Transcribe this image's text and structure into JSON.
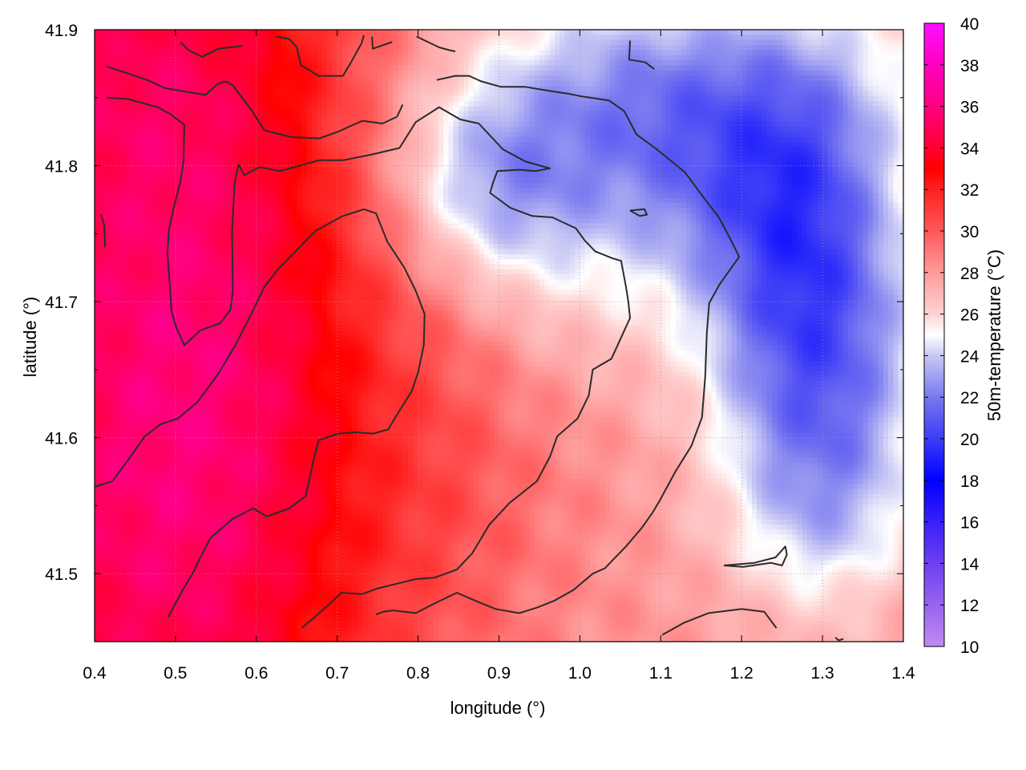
{
  "chart_data": {
    "type": "heatmap",
    "xlabel": "longitude (°)",
    "ylabel": "latitude (°)",
    "colorbar_label": "50m-temperature (°C)",
    "xlim": [
      0.4,
      1.4
    ],
    "ylim": [
      41.45,
      41.9
    ],
    "xticks": [
      "0.4",
      "0.5",
      "0.6",
      "0.7",
      "0.8",
      "0.9",
      "1.0",
      "1.1",
      "1.2",
      "1.3",
      "1.4"
    ],
    "yticks": [
      "41.5",
      "41.6",
      "41.7",
      "41.8",
      "41.9"
    ],
    "colorbar_ticks": [
      "10",
      "12",
      "14",
      "16",
      "18",
      "20",
      "22",
      "24",
      "26",
      "28",
      "30",
      "32",
      "34",
      "36",
      "38",
      "40"
    ],
    "clim": [
      10,
      40
    ],
    "grid": "dotted",
    "colormap": [
      {
        "v": 10,
        "color": "#c08af0"
      },
      {
        "v": 14,
        "color": "#6e40f0"
      },
      {
        "v": 18,
        "color": "#0000ff"
      },
      {
        "v": 22,
        "color": "#7878f0"
      },
      {
        "v": 24,
        "color": "#c8c8f5"
      },
      {
        "v": 25,
        "color": "#ffffff"
      },
      {
        "v": 26,
        "color": "#ffd2d2"
      },
      {
        "v": 28,
        "color": "#ff9a9a"
      },
      {
        "v": 30,
        "color": "#ff5858"
      },
      {
        "v": 32,
        "color": "#ff2020"
      },
      {
        "v": 33,
        "color": "#ff0000"
      },
      {
        "v": 34,
        "color": "#ff0030"
      },
      {
        "v": 36,
        "color": "#ff0080"
      },
      {
        "v": 38,
        "color": "#ff00c0"
      },
      {
        "v": 40,
        "color": "#ff10ff"
      }
    ],
    "temperature_field": {
      "background": 28,
      "components": [
        {
          "lon": 0.45,
          "lat": 41.6,
          "sx": 0.22,
          "sy": 0.35,
          "dT": 7
        },
        {
          "lon": 0.6,
          "lat": 41.65,
          "sx": 0.12,
          "sy": 0.2,
          "dT": 1.5
        },
        {
          "lon": 0.45,
          "lat": 41.88,
          "sx": 0.25,
          "sy": 0.08,
          "dT": 1.5
        },
        {
          "lon": 1.1,
          "lat": 41.84,
          "sx": 0.22,
          "sy": 0.07,
          "dT": -6
        },
        {
          "lon": 0.88,
          "lat": 41.78,
          "sx": 0.08,
          "sy": 0.05,
          "dT": -3
        },
        {
          "lon": 1.3,
          "lat": 41.62,
          "sx": 0.09,
          "sy": 0.13,
          "dT": -6
        },
        {
          "lon": 1.25,
          "lat": 41.74,
          "sx": 0.1,
          "sy": 0.08,
          "dT": -3.5
        },
        {
          "lon": 1.0,
          "lat": 41.72,
          "sx": 0.1,
          "sy": 0.06,
          "dT": -1.5
        },
        {
          "lon": 1.3,
          "lat": 41.46,
          "sx": 0.1,
          "sy": 0.04,
          "dT": 1.5
        },
        {
          "lon": 1.38,
          "lat": 41.8,
          "sx": 0.05,
          "sy": 0.05,
          "dT": 1
        },
        {
          "lon": 0.85,
          "lat": 41.56,
          "sx": 0.1,
          "sy": 0.1,
          "dT": 1
        }
      ]
    },
    "contours": [
      [
        [
          0.415,
          41.873
        ],
        [
          0.435,
          41.869
        ],
        [
          0.465,
          41.863
        ],
        [
          0.487,
          41.857
        ],
        [
          0.537,
          41.852
        ],
        [
          0.552,
          41.86
        ],
        [
          0.562,
          41.862
        ],
        [
          0.571,
          41.859
        ],
        [
          0.595,
          41.84
        ],
        [
          0.61,
          41.826
        ],
        [
          0.643,
          41.821
        ],
        [
          0.678,
          41.82
        ],
        [
          0.701,
          41.825
        ],
        [
          0.731,
          41.833
        ],
        [
          0.756,
          41.831
        ],
        [
          0.774,
          41.836
        ],
        [
          0.781,
          41.845
        ]
      ],
      [
        [
          0.415,
          41.85
        ],
        [
          0.441,
          41.849
        ],
        [
          0.478,
          41.843
        ],
        [
          0.496,
          41.837
        ],
        [
          0.511,
          41.83
        ],
        [
          0.51,
          41.804
        ],
        [
          0.506,
          41.788
        ],
        [
          0.497,
          41.767
        ],
        [
          0.492,
          41.753
        ],
        [
          0.49,
          41.736
        ],
        [
          0.494,
          41.704
        ],
        [
          0.495,
          41.693
        ],
        [
          0.501,
          41.681
        ],
        [
          0.511,
          41.668
        ],
        [
          0.531,
          41.679
        ],
        [
          0.555,
          41.684
        ],
        [
          0.568,
          41.694
        ],
        [
          0.571,
          41.708
        ],
        [
          0.57,
          41.751
        ],
        [
          0.573,
          41.787
        ],
        [
          0.578,
          41.801
        ]
      ],
      [
        [
          0.578,
          41.801
        ],
        [
          0.585,
          41.793
        ],
        [
          0.604,
          41.799
        ],
        [
          0.629,
          41.796
        ],
        [
          0.678,
          41.804
        ],
        [
          0.707,
          41.804
        ],
        [
          0.741,
          41.808
        ],
        [
          0.777,
          41.813
        ],
        [
          0.797,
          41.832
        ],
        [
          0.826,
          41.843
        ],
        [
          0.852,
          41.834
        ],
        [
          0.875,
          41.831
        ],
        [
          0.905,
          41.812
        ],
        [
          0.933,
          41.803
        ],
        [
          0.963,
          41.798
        ],
        [
          0.945,
          41.796
        ],
        [
          0.925,
          41.797
        ],
        [
          0.898,
          41.796
        ],
        [
          0.893,
          41.788
        ],
        [
          0.889,
          41.78
        ],
        [
          0.914,
          41.769
        ],
        [
          0.941,
          41.763
        ],
        [
          0.966,
          41.762
        ],
        [
          0.995,
          41.754
        ],
        [
          1.006,
          41.745
        ],
        [
          1.019,
          41.737
        ],
        [
          1.04,
          41.732
        ],
        [
          1.051,
          41.73
        ],
        [
          1.057,
          41.711
        ],
        [
          1.06,
          41.7
        ],
        [
          1.062,
          41.688
        ],
        [
          1.039,
          41.658
        ],
        [
          1.016,
          41.65
        ],
        [
          1.011,
          41.631
        ],
        [
          0.997,
          41.614
        ],
        [
          0.972,
          41.601
        ],
        [
          0.963,
          41.586
        ],
        [
          0.947,
          41.568
        ],
        [
          0.913,
          41.552
        ],
        [
          0.888,
          41.536
        ],
        [
          0.867,
          41.515
        ],
        [
          0.848,
          41.503
        ],
        [
          0.82,
          41.497
        ],
        [
          0.797,
          41.496
        ],
        [
          0.749,
          41.489
        ],
        [
          0.731,
          41.485
        ],
        [
          0.705,
          41.486
        ],
        [
          0.695,
          41.48
        ],
        [
          0.67,
          41.467
        ],
        [
          0.656,
          41.46
        ]
      ],
      [
        [
          0.748,
          41.47
        ],
        [
          0.757,
          41.472
        ],
        [
          0.769,
          41.473
        ],
        [
          0.797,
          41.471
        ],
        [
          0.82,
          41.478
        ],
        [
          0.848,
          41.486
        ],
        [
          0.875,
          41.479
        ],
        [
          0.896,
          41.474
        ],
        [
          0.925,
          41.471
        ],
        [
          0.947,
          41.475
        ],
        [
          0.968,
          41.48
        ],
        [
          0.992,
          41.488
        ],
        [
          1.016,
          41.5
        ],
        [
          1.031,
          41.504
        ],
        [
          1.057,
          41.52
        ],
        [
          1.077,
          41.534
        ],
        [
          1.09,
          41.545
        ],
        [
          1.099,
          41.554
        ],
        [
          1.118,
          41.575
        ],
        [
          1.138,
          41.594
        ],
        [
          1.151,
          41.615
        ],
        [
          1.155,
          41.645
        ],
        [
          1.157,
          41.677
        ],
        [
          1.16,
          41.699
        ],
        [
          1.173,
          41.713
        ],
        [
          1.197,
          41.733
        ],
        [
          1.187,
          41.745
        ],
        [
          1.172,
          41.762
        ],
        [
          1.155,
          41.775
        ],
        [
          1.13,
          41.795
        ],
        [
          1.114,
          41.803
        ],
        [
          1.093,
          41.813
        ],
        [
          1.07,
          41.823
        ],
        [
          1.055,
          41.84
        ],
        [
          1.036,
          41.848
        ],
        [
          1.002,
          41.851
        ],
        [
          0.985,
          41.853
        ],
        [
          0.952,
          41.856
        ],
        [
          0.932,
          41.858
        ],
        [
          0.902,
          41.858
        ],
        [
          0.878,
          41.862
        ],
        [
          0.863,
          41.866
        ],
        [
          0.846,
          41.866
        ],
        [
          0.823,
          41.863
        ]
      ],
      [
        [
          0.506,
          41.891
        ],
        [
          0.516,
          41.885
        ],
        [
          0.533,
          41.88
        ],
        [
          0.553,
          41.886
        ],
        [
          0.583,
          41.888
        ]
      ],
      [
        [
          0.625,
          41.895
        ],
        [
          0.641,
          41.893
        ],
        [
          0.65,
          41.887
        ],
        [
          0.655,
          41.874
        ],
        [
          0.677,
          41.866
        ],
        [
          0.707,
          41.866
        ],
        [
          0.717,
          41.876
        ],
        [
          0.73,
          41.89
        ],
        [
          0.733,
          41.896
        ]
      ],
      [
        [
          0.743,
          41.895
        ],
        [
          0.744,
          41.886
        ],
        [
          0.768,
          41.891
        ]
      ],
      [
        [
          0.798,
          41.895
        ],
        [
          0.826,
          41.887
        ],
        [
          0.838,
          41.885
        ],
        [
          0.846,
          41.884
        ]
      ],
      [
        [
          1.062,
          41.892
        ],
        [
          1.061,
          41.878
        ],
        [
          1.081,
          41.876
        ],
        [
          1.092,
          41.871
        ]
      ],
      [
        [
          0.408,
          41.764
        ],
        [
          0.412,
          41.756
        ],
        [
          0.413,
          41.74
        ]
      ],
      [
        [
          0.401,
          41.564
        ],
        [
          0.422,
          41.568
        ],
        [
          0.442,
          41.584
        ],
        [
          0.462,
          41.601
        ],
        [
          0.482,
          41.61
        ],
        [
          0.503,
          41.614
        ],
        [
          0.527,
          41.626
        ],
        [
          0.553,
          41.647
        ],
        [
          0.574,
          41.668
        ],
        [
          0.593,
          41.69
        ],
        [
          0.61,
          41.711
        ],
        [
          0.627,
          41.724
        ],
        [
          0.65,
          41.738
        ],
        [
          0.673,
          41.752
        ],
        [
          0.707,
          41.763
        ],
        [
          0.733,
          41.768
        ],
        [
          0.748,
          41.765
        ],
        [
          0.762,
          41.744
        ],
        [
          0.783,
          41.725
        ],
        [
          0.797,
          41.708
        ],
        [
          0.808,
          41.691
        ],
        [
          0.807,
          41.668
        ],
        [
          0.8,
          41.648
        ],
        [
          0.792,
          41.634
        ],
        [
          0.774,
          41.617
        ],
        [
          0.763,
          41.606
        ],
        [
          0.744,
          41.603
        ],
        [
          0.723,
          41.604
        ],
        [
          0.701,
          41.603
        ],
        [
          0.677,
          41.598
        ],
        [
          0.671,
          41.584
        ],
        [
          0.664,
          41.565
        ],
        [
          0.661,
          41.557
        ],
        [
          0.641,
          41.548
        ],
        [
          0.613,
          41.542
        ],
        [
          0.596,
          41.548
        ],
        [
          0.57,
          41.54
        ],
        [
          0.543,
          41.526
        ],
        [
          0.53,
          41.511
        ],
        [
          0.522,
          41.501
        ],
        [
          0.509,
          41.488
        ],
        [
          0.491,
          41.468
        ]
      ],
      [
        [
          1.062,
          41.767
        ],
        [
          1.074,
          41.763
        ],
        [
          1.083,
          41.764
        ],
        [
          1.08,
          41.768
        ],
        [
          1.062,
          41.767
        ]
      ],
      [
        [
          1.102,
          41.455
        ],
        [
          1.129,
          41.464
        ],
        [
          1.159,
          41.471
        ],
        [
          1.2,
          41.474
        ],
        [
          1.228,
          41.472
        ],
        [
          1.243,
          41.46
        ]
      ],
      [
        [
          1.178,
          41.506
        ],
        [
          1.216,
          41.508
        ],
        [
          1.242,
          41.512
        ],
        [
          1.254,
          41.52
        ],
        [
          1.256,
          41.514
        ],
        [
          1.25,
          41.506
        ],
        [
          1.236,
          41.508
        ],
        [
          1.202,
          41.505
        ],
        [
          1.178,
          41.506
        ]
      ],
      [
        [
          1.316,
          41.453
        ],
        [
          1.32,
          41.451
        ],
        [
          1.326,
          41.452
        ]
      ]
    ]
  }
}
